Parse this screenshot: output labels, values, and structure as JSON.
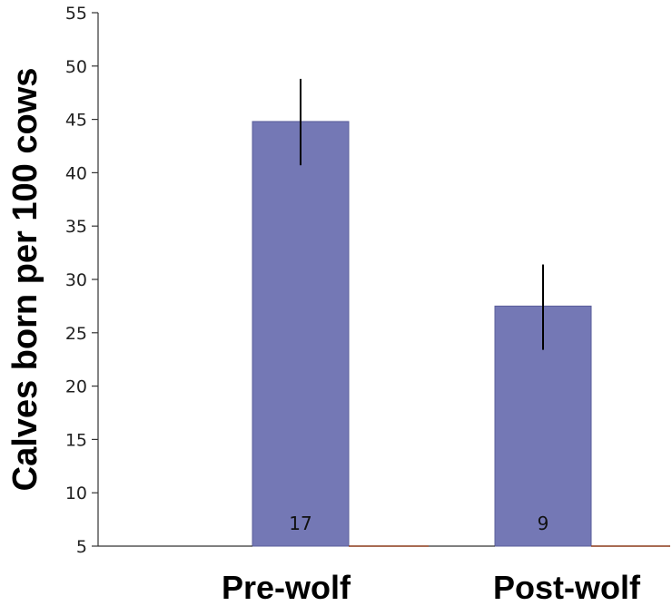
{
  "chart_data": {
    "type": "bar",
    "categories": [
      "Pre-wolf",
      "Post-wolf"
    ],
    "values": [
      44.8,
      27.5
    ],
    "errors": [
      {
        "low": 40.7,
        "high": 48.8
      },
      {
        "low": 23.4,
        "high": 31.4
      }
    ],
    "sample_sizes": [
      "17",
      "9"
    ],
    "ylabel": "Calves born per 100 cows",
    "xlabel": "",
    "ylim": [
      5,
      55
    ],
    "yticks": [
      5,
      10,
      15,
      20,
      25,
      30,
      35,
      40,
      45,
      50,
      55
    ],
    "grid": false,
    "colors": {
      "bar": "#7478b5",
      "bar_edge": "#5a5e9a",
      "error_bar": "#000000",
      "axis": "#333333",
      "baseline_accent": "#8b3a1a"
    }
  }
}
